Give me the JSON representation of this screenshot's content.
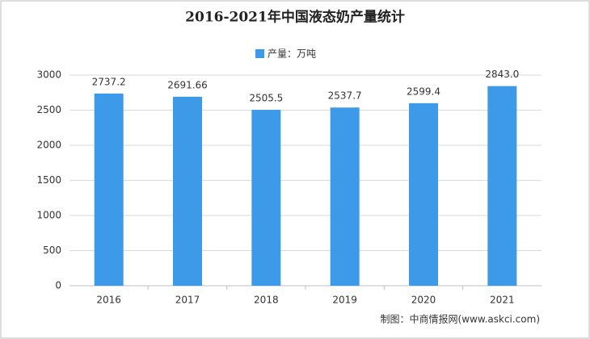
{
  "chart_data": {
    "type": "bar",
    "title": "2016-2021年中国液态奶产量统计",
    "legend_label": "产量：万吨",
    "source": "制图：中商情报网(www.askci.com)",
    "categories": [
      "2016",
      "2017",
      "2018",
      "2019",
      "2020",
      "2021"
    ],
    "values": [
      2737.2,
      2691.66,
      2505.5,
      2537.7,
      2599.4,
      2843.0
    ],
    "value_labels": [
      "2737.2",
      "2691.66",
      "2505.5",
      "2537.7",
      "2599.4",
      "2843.0"
    ],
    "color": "#3d9ae8",
    "ylim": [
      0,
      3000
    ],
    "yticks": [
      0,
      500,
      1000,
      1500,
      2000,
      2500,
      3000
    ],
    "grid": true
  }
}
